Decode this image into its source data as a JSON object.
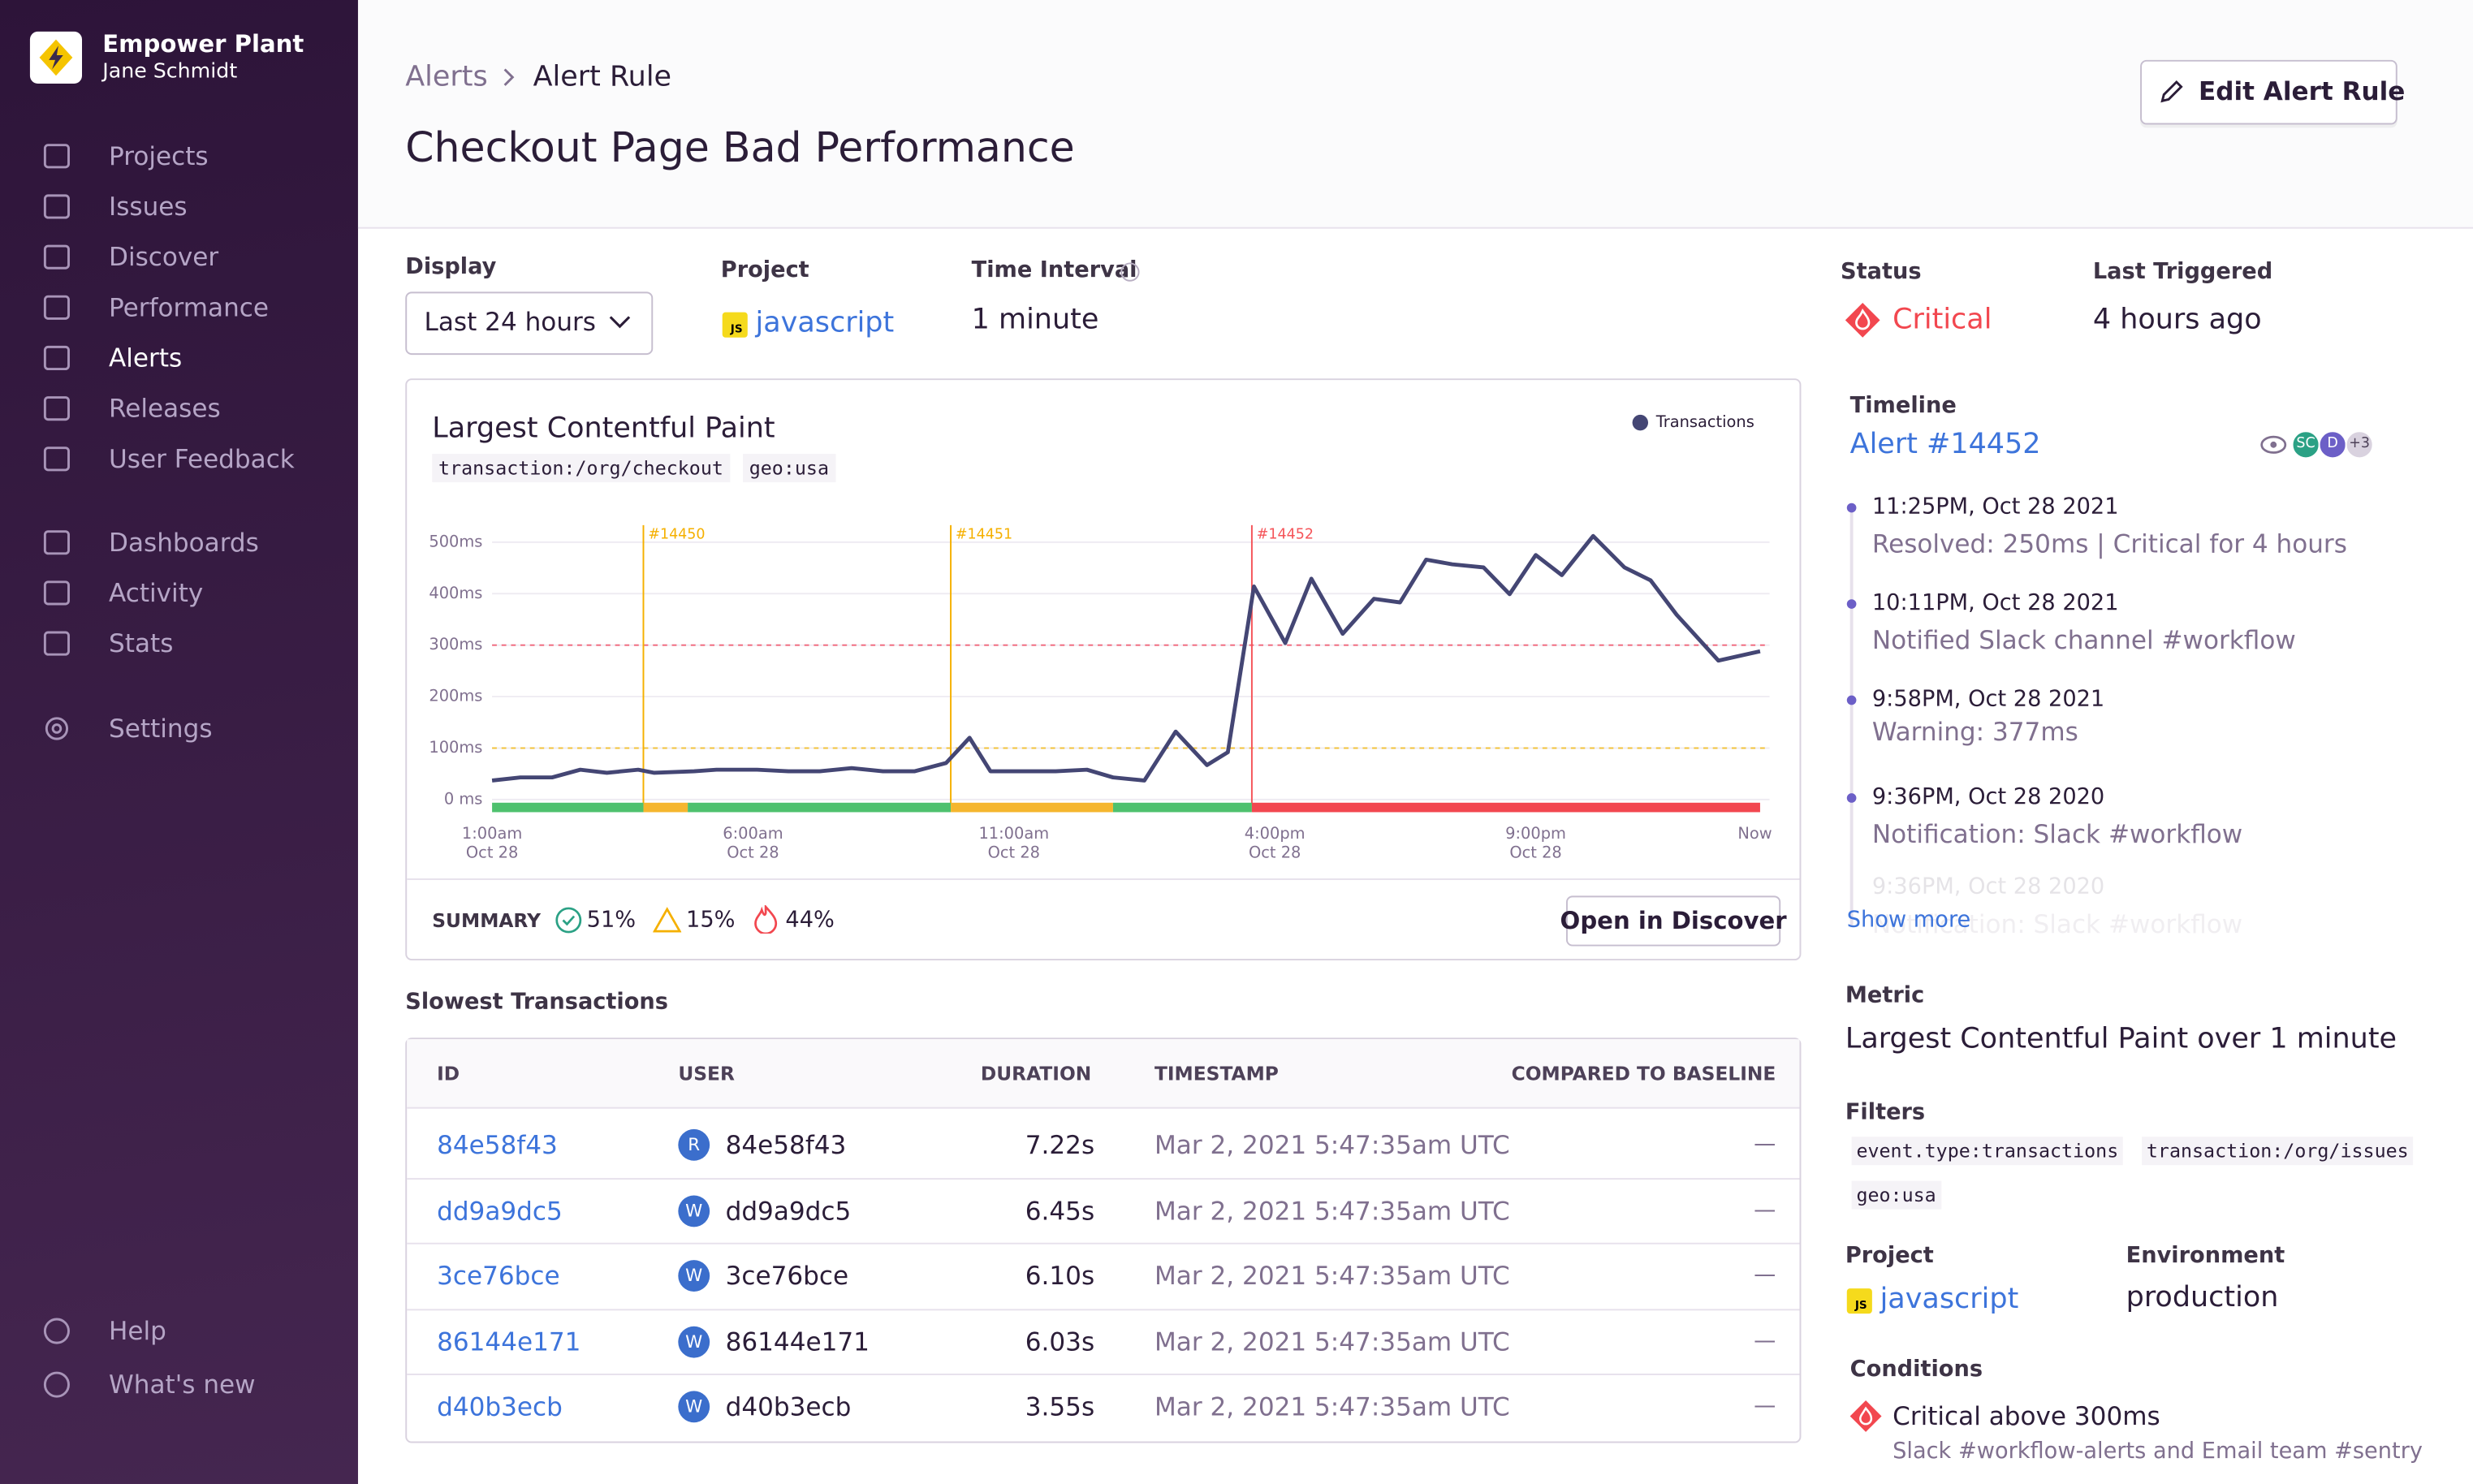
{
  "sidebar": {
    "org": "Empower Plant",
    "user": "Jane Schmidt",
    "nav": [
      "Projects",
      "Issues",
      "Discover",
      "Performance",
      "Alerts",
      "Releases",
      "User Feedback"
    ],
    "nav2": [
      "Dashboards",
      "Activity",
      "Stats"
    ],
    "settings": "Settings",
    "footer": [
      "Help",
      "What's new"
    ]
  },
  "header": {
    "breadcrumb": [
      "Alerts",
      "Alert Rule"
    ],
    "title": "Checkout Page Bad Performance",
    "edit_button": "Edit Alert Rule"
  },
  "filters": {
    "display_label": "Display",
    "display_value": "Last 24 hours",
    "project_label": "Project",
    "badge": "JS",
    "project_value": "javascript",
    "interval_label": "Time Interval",
    "interval_value": "1 minute"
  },
  "chart_data": {
    "type": "line",
    "title": "Largest Contentful Paint",
    "tags": [
      "transaction:/org/checkout",
      "geo:usa"
    ],
    "x": [
      0,
      0.54,
      1.15,
      1.69,
      2.2,
      2.8,
      3.1,
      3.87,
      4.3,
      5.08,
      5.68,
      6.28,
      6.89,
      7.49,
      8.1,
      8.7,
      9.15,
      9.55,
      10.2,
      10.8,
      11.4,
      11.9,
      12.5,
      13.1,
      13.7,
      14.1,
      14.6,
      15.2,
      15.7,
      16.3,
      16.9,
      17.4,
      17.9,
      18.4,
      19.0,
      19.5,
      20.0,
      20.5,
      21.1,
      21.7,
      22.2,
      22.7,
      23.5,
      24.3
    ],
    "series": [
      {
        "name": "Transactions",
        "color": "#444674",
        "values": [
          37,
          43,
          43,
          58,
          52,
          58,
          52,
          55,
          58,
          58,
          55,
          55,
          61,
          55,
          55,
          71,
          120,
          55,
          55,
          55,
          58,
          43,
          37,
          132,
          67,
          92,
          414,
          304,
          429,
          322,
          390,
          383,
          466,
          457,
          451,
          399,
          475,
          436,
          512,
          451,
          426,
          359,
          270,
          288
        ]
      }
    ],
    "xlim": [
      0,
      24.3
    ],
    "xticks": [
      {
        "value": 0,
        "label": "1:00am",
        "date": "Oct 28"
      },
      {
        "value": 5,
        "label": "6:00am",
        "date": "Oct 28"
      },
      {
        "value": 10,
        "label": "11:00am",
        "date": "Oct 28"
      },
      {
        "value": 15,
        "label": "4:00pm",
        "date": "Oct 28"
      },
      {
        "value": 20,
        "label": "9:00pm",
        "date": "Oct 28"
      },
      {
        "value": 24.2,
        "label": "Now"
      }
    ],
    "ylim": [
      0,
      530
    ],
    "yticks": [
      {
        "value": 0,
        "label": "0 ms"
      },
      {
        "value": 100,
        "label": "100ms"
      },
      {
        "value": 200,
        "label": "200ms"
      },
      {
        "value": 300,
        "label": "300ms"
      },
      {
        "value": 400,
        "label": "400ms"
      },
      {
        "value": 500,
        "label": "500ms"
      }
    ],
    "grid": true,
    "thresholds": [
      {
        "value": 300,
        "color": "#f0667a"
      },
      {
        "value": 100,
        "color": "#f2c23c"
      }
    ],
    "alerts": [
      {
        "label": "#14450",
        "x": 2.9,
        "color": "#f5b000"
      },
      {
        "label": "#14451",
        "x": 8.79,
        "color": "#f5b000"
      },
      {
        "label": "#14452",
        "x": 14.56,
        "color": "#f55459"
      }
    ],
    "status_bar": [
      {
        "start": 0,
        "end": 2.9,
        "color": "#4ec16e"
      },
      {
        "start": 2.9,
        "end": 3.75,
        "color": "#f5b62e"
      },
      {
        "start": 3.75,
        "end": 8.79,
        "color": "#4ec16e"
      },
      {
        "start": 8.79,
        "end": 11.9,
        "color": "#f5b62e"
      },
      {
        "start": 11.9,
        "end": 14.56,
        "color": "#4ec16e"
      },
      {
        "start": 14.56,
        "end": 24.3,
        "color": "#f2474f"
      }
    ]
  },
  "summary": {
    "label": "SUMMARY",
    "items": [
      "51%",
      "15%",
      "44%"
    ],
    "button": "Open in Discover"
  },
  "table": {
    "title": "Slowest Transactions",
    "columns": [
      "ID",
      "USER",
      "DURATION",
      "TIMESTAMP",
      "COMPARED TO BASELINE"
    ],
    "rows": [
      [
        "84e58f43",
        "R",
        "84e58f43",
        "7.22s",
        "Mar 2, 2021 5:47:35am UTC",
        "—"
      ],
      [
        "dd9a9dc5",
        "W",
        "dd9a9dc5",
        "6.45s",
        "Mar 2, 2021 5:47:35am UTC",
        "—"
      ],
      [
        "3ce76bce",
        "W",
        "3ce76bce",
        "6.10s",
        "Mar 2, 2021 5:47:35am UTC",
        "—"
      ],
      [
        "86144e171",
        "W",
        "86144e171",
        "6.03s",
        "Mar 2, 2021 5:47:35am UTC",
        "—"
      ],
      [
        "d40b3ecb",
        "W",
        "d40b3ecb",
        "3.55s",
        "Mar 2, 2021 5:47:35am UTC",
        "—"
      ]
    ]
  },
  "side": {
    "status_label": "Status",
    "status_value": "Critical",
    "last_label": "Last Triggered",
    "last_value": "4 hours ago",
    "timeline_label": "Timeline",
    "alert_link": "Alert #14452",
    "avatars": [
      "SC",
      "D",
      "+3"
    ],
    "timeline": [
      {
        "time": "11:25PM, Oct 28 2021",
        "text": "Resolved: 250ms | Critical for 4 hours"
      },
      {
        "time": "10:11PM, Oct 28 2021",
        "text": "Notified Slack channel #workflow"
      },
      {
        "time": "9:58PM, Oct 28 2021",
        "text": "Warning: 377ms"
      },
      {
        "time": "9:36PM, Oct 28 2020",
        "text": "Notification: Slack #workflow"
      },
      {
        "time": "9:36PM, Oct 28 2020",
        "text": "Notification: Slack #workflow"
      }
    ],
    "show_more": "Show more",
    "metric_label": "Metric",
    "metric_value": "Largest Contentful Paint over 1 minute",
    "filters_label": "Filters",
    "filter_tags": [
      "event.type:transactions",
      "transaction:/org/issues",
      "geo:usa"
    ],
    "project_label": "Project",
    "badge": "JS",
    "project_value": "javascript",
    "env_label": "Environment",
    "env_value": "production",
    "conditions_label": "Conditions",
    "condition": "Critical above 300ms",
    "condition_detail": "Slack #workflow-alerts and Email team #sentry"
  }
}
